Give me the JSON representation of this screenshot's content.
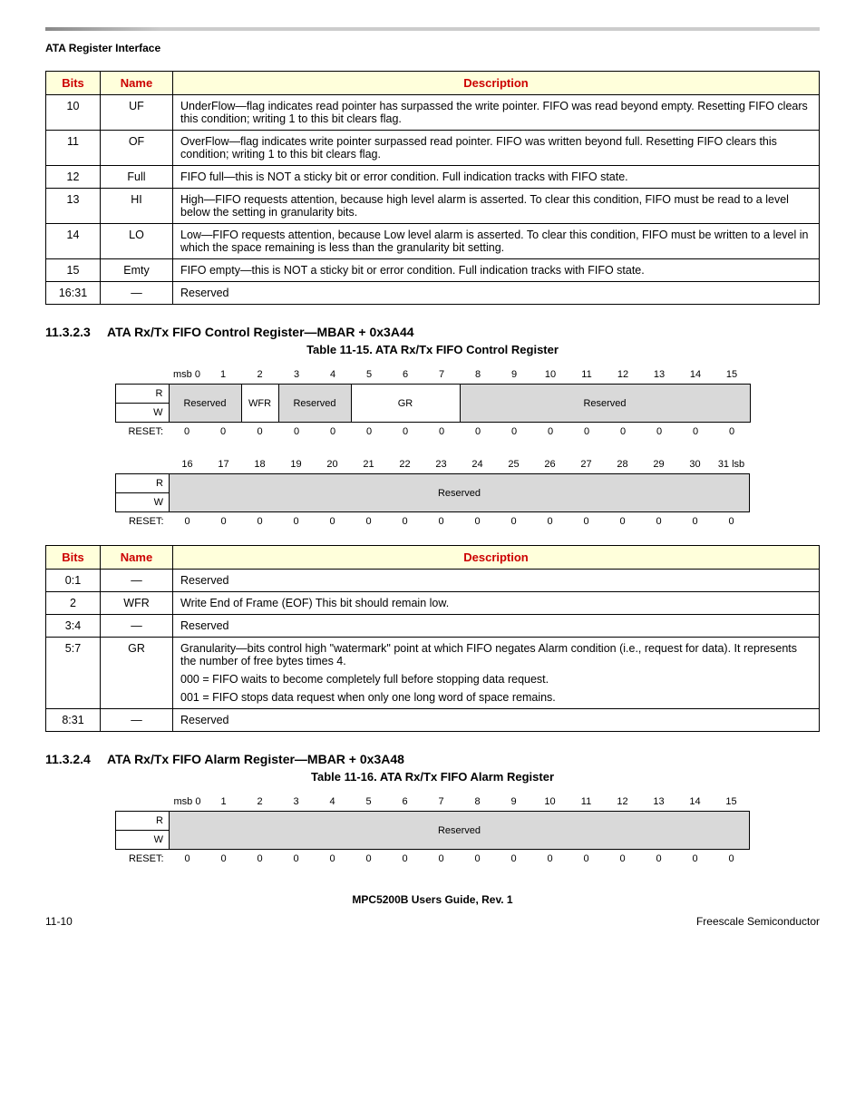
{
  "header_small": "ATA Register Interface",
  "table1": {
    "headers": [
      "Bits",
      "Name",
      "Description"
    ],
    "col_widths": [
      "60px",
      "80px",
      "auto"
    ],
    "rows": [
      {
        "bits": "10",
        "name": "UF",
        "desc": "UnderFlow—flag indicates read pointer has surpassed the write pointer. FIFO was read beyond empty. Resetting FIFO clears this condition; writing 1 to this bit clears flag."
      },
      {
        "bits": "11",
        "name": "OF",
        "desc": "OverFlow—flag indicates write pointer surpassed read pointer. FIFO was written beyond full. Resetting FIFO clears this condition; writing 1 to this bit clears flag."
      },
      {
        "bits": "12",
        "name": "Full",
        "desc": "FIFO full—this is NOT a sticky bit or error condition. Full indication tracks with FIFO state."
      },
      {
        "bits": "13",
        "name": "HI",
        "desc": "High—FIFO requests attention, because high level alarm is asserted. To clear this condition, FIFO must be read to a level below the setting in granularity bits."
      },
      {
        "bits": "14",
        "name": "LO",
        "desc": "Low—FIFO requests attention, because Low level alarm is asserted. To clear this condition, FIFO must be written to a level in which the space remaining is less than the granularity bit setting."
      },
      {
        "bits": "15",
        "name": "Emty",
        "desc": "FIFO empty—this is NOT a sticky bit or error condition. Full indication tracks with FIFO state."
      },
      {
        "bits": "16:31",
        "name": "—",
        "desc": "Reserved"
      }
    ]
  },
  "sec1_num": "11.3.2.3",
  "sec1_title": "ATA Rx/Tx FIFO Control Register—MBAR + 0x3A44",
  "tbl15_caption": "Table 11-15. ATA Rx/Tx FIFO Control Register",
  "bits_upper_labels": [
    "msb 0",
    "1",
    "2",
    "3",
    "4",
    "5",
    "6",
    "7",
    "8",
    "9",
    "10",
    "11",
    "12",
    "13",
    "14",
    "15"
  ],
  "bits_upper_fields": {
    "reserved1": "Reserved",
    "wfr": "WFR",
    "reserved2": "Reserved",
    "gr": "GR",
    "reserved3": "Reserved"
  },
  "bits_lower_labels": [
    "16",
    "17",
    "18",
    "19",
    "20",
    "21",
    "22",
    "23",
    "24",
    "25",
    "26",
    "27",
    "28",
    "29",
    "30",
    "31 lsb"
  ],
  "bits_lower_field": "Reserved",
  "reset_label": "RESET:",
  "r_label": "R",
  "w_label": "W",
  "reset_vals": [
    "0",
    "0",
    "0",
    "0",
    "0",
    "0",
    "0",
    "0",
    "0",
    "0",
    "0",
    "0",
    "0",
    "0",
    "0",
    "0"
  ],
  "table2": {
    "headers": [
      "Bits",
      "Name",
      "Description"
    ],
    "col_widths": [
      "60px",
      "80px",
      "auto"
    ],
    "rows": [
      {
        "bits": "0:1",
        "name": "—",
        "desc": "Reserved"
      },
      {
        "bits": "2",
        "name": "WFR",
        "desc": "Write End of Frame (EOF) This bit should remain low."
      },
      {
        "bits": "3:4",
        "name": "—",
        "desc": "Reserved"
      },
      {
        "bits": "5:7",
        "name": "GR",
        "desc": "Granularity—bits control high \"watermark\" point at which FIFO negates Alarm condition (i.e., request for data). It represents the number of free bytes times 4.\n000 = FIFO waits to become completely full before stopping data request.\n001 = FIFO stops data request when only one long word of space remains."
      },
      {
        "bits": "8:31",
        "name": "—",
        "desc": "Reserved"
      }
    ]
  },
  "sec2_num": "11.3.2.4",
  "sec2_title": "ATA Rx/Tx FIFO Alarm Register—MBAR + 0x3A48",
  "tbl16_caption": "Table 11-16. ATA Rx/Tx FIFO Alarm Register",
  "alarm_field": "Reserved",
  "footer_center": "MPC5200B Users Guide, Rev. 1",
  "footer_left": "11-10",
  "footer_right": "Freescale Semiconductor"
}
